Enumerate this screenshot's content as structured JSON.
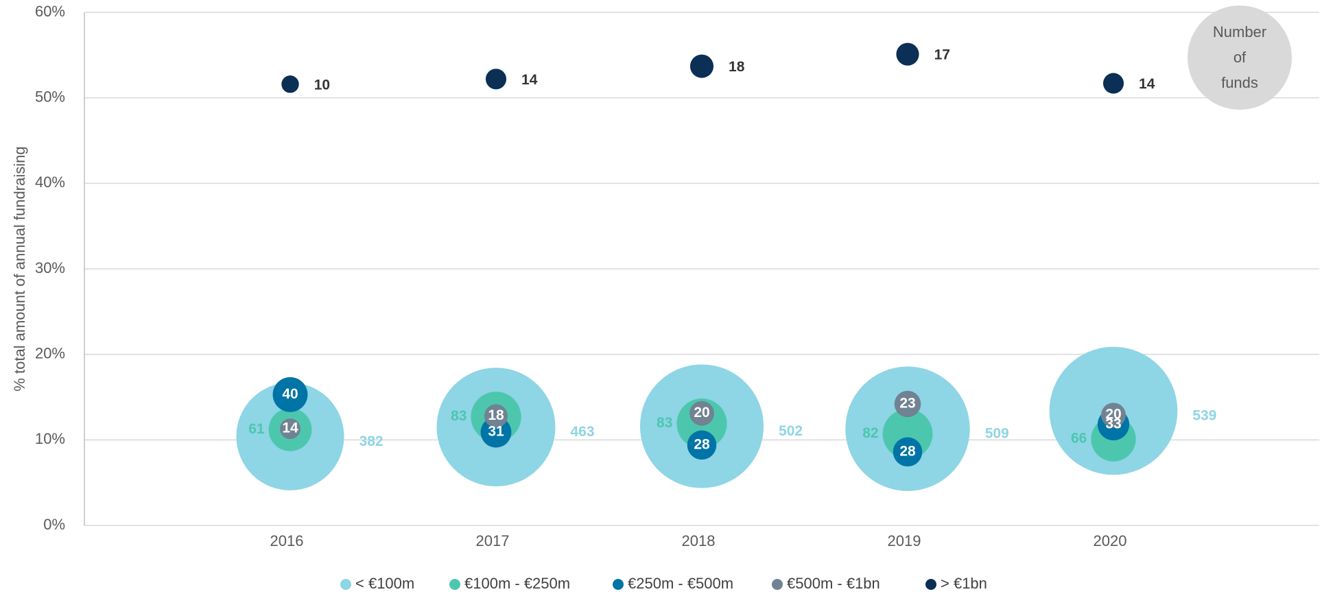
{
  "chart_data": {
    "type": "bubble",
    "y_axis_label": "% total amount of annual fundraising",
    "categories": [
      "2016",
      "2017",
      "2018",
      "2019",
      "2020"
    ],
    "ylim": [
      0,
      60
    ],
    "yticks": [
      {
        "value": 0,
        "label": "0%"
      },
      {
        "value": 10,
        "label": "10%"
      },
      {
        "value": 20,
        "label": "20%"
      },
      {
        "value": 30,
        "label": "30%"
      },
      {
        "value": 40,
        "label": "40%"
      },
      {
        "value": 50,
        "label": "50%"
      },
      {
        "value": 60,
        "label": "60%"
      }
    ],
    "grid": true,
    "legend": "bottom",
    "size_annotation": [
      "Number",
      "of",
      "funds"
    ],
    "series": [
      {
        "name": "< €100m",
        "color": "#8ed5e5",
        "values": [
          10.4,
          11.5,
          11.6,
          11.3,
          13.4
        ],
        "sizes": [
          382,
          463,
          502,
          509,
          539
        ]
      },
      {
        "name": "€100m - €250m",
        "color": "#4cc7ae",
        "values": [
          11.2,
          12.7,
          11.9,
          10.7,
          10.1
        ],
        "sizes": [
          61,
          83,
          83,
          82,
          66
        ]
      },
      {
        "name": "€250m - €500m",
        "color": "#0074a6",
        "values": [
          15.3,
          10.9,
          9.4,
          8.6,
          11.8
        ],
        "sizes": [
          40,
          31,
          28,
          28,
          33
        ]
      },
      {
        "name": "€500m - €1bn",
        "color": "#718292",
        "values": [
          11.3,
          12.8,
          13.1,
          14.2,
          12.9
        ],
        "sizes": [
          14,
          18,
          20,
          23,
          20
        ]
      },
      {
        "name": "> €1bn",
        "color": "#0b2f55",
        "values": [
          51.6,
          52.2,
          53.7,
          55.1,
          51.7
        ],
        "sizes": [
          10,
          14,
          18,
          17,
          14
        ]
      }
    ]
  }
}
